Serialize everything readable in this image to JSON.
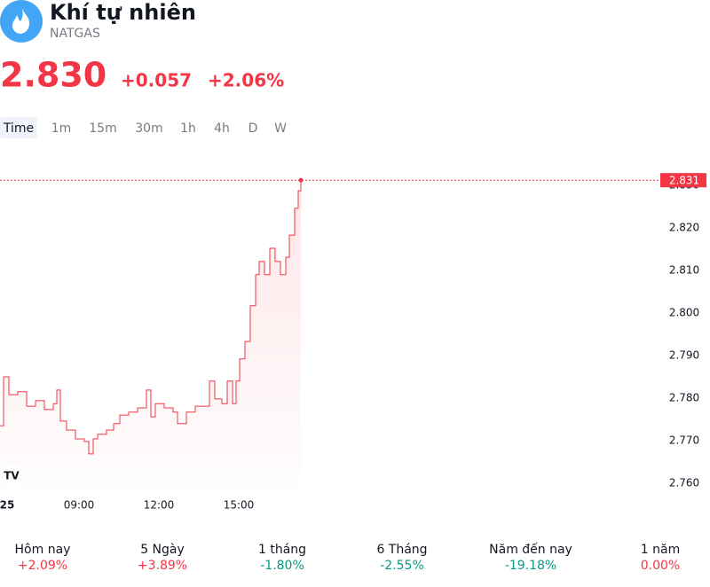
{
  "header": {
    "title": "Khí tự nhiên",
    "symbol": "NATGAS",
    "price": "2.830",
    "change": "+0.057",
    "change_percent": "+2.06%"
  },
  "timeframes": [
    "Time",
    "1m",
    "15m",
    "30m",
    "1h",
    "4h",
    "D",
    "W"
  ],
  "chart_data": {
    "type": "line",
    "series": [
      {
        "name": "NATGAS",
        "color": "#f23645",
        "x": [
          362,
          370,
          382,
          402,
          422,
          442,
          462,
          482,
          490,
          498,
          512,
          532,
          552,
          562,
          572,
          582,
          602,
          618,
          632,
          652,
          672,
          692,
          702,
          712,
          732,
          752,
          762,
          782,
          802,
          822,
          834,
          846,
          862,
          874,
          886,
          894,
          902,
          914,
          926,
          938,
          946,
          958,
          970,
          982,
          994,
          1006,
          1014,
          1026,
          1034,
          1040
        ],
        "values": [
          2.7733,
          2.7848,
          2.7806,
          2.7813,
          2.7779,
          2.7792,
          2.7771,
          2.7785,
          2.7817,
          2.7744,
          2.7723,
          2.7702,
          2.7696,
          2.7667,
          2.7702,
          2.7713,
          2.7723,
          2.7738,
          2.7758,
          2.7765,
          2.7775,
          2.7817,
          2.7754,
          2.7785,
          2.7775,
          2.7765,
          2.7738,
          2.7765,
          2.7779,
          2.7779,
          2.7838,
          2.7796,
          2.7785,
          2.7838,
          2.7785,
          2.7838,
          2.789,
          2.7931,
          2.8015,
          2.8088,
          2.8119,
          2.8088,
          2.815,
          2.8119,
          2.8088,
          2.8129,
          2.8181,
          2.8244,
          2.8285,
          2.831
        ]
      }
    ],
    "xlim": [
      362,
      1842
    ],
    "xticks": [
      {
        "value": 378,
        "label": "25"
      },
      {
        "value": 540,
        "label": "09:00"
      },
      {
        "value": 720,
        "label": "12:00"
      },
      {
        "value": 900,
        "label": "15:00"
      }
    ],
    "ylim": [
      2.758,
      2.838
    ],
    "yticks": [
      {
        "value": 2.76,
        "label": "2.760"
      },
      {
        "value": 2.77,
        "label": "2.770"
      },
      {
        "value": 2.78,
        "label": "2.780"
      },
      {
        "value": 2.79,
        "label": "2.790"
      },
      {
        "value": 2.8,
        "label": "2.800"
      },
      {
        "value": 2.81,
        "label": "2.810"
      },
      {
        "value": 2.82,
        "label": "2.820"
      },
      {
        "value": 2.83,
        "label": "2.830"
      }
    ],
    "grid": false
  },
  "performance": [
    {
      "label": "Hôm nay",
      "value": "+2.09%",
      "color": "#f23645"
    },
    {
      "label": "5 Ngày",
      "value": "+3.89%",
      "color": "#f23645"
    },
    {
      "label": "1 tháng",
      "value": "-1.80%",
      "color": "#089981"
    },
    {
      "label": "6 Tháng",
      "value": "-2.55%",
      "color": "#089981"
    },
    {
      "label": "Năm đến nay",
      "value": "-19.18%",
      "color": "#089981"
    },
    {
      "label": "1 năm",
      "value": "0.00%",
      "color": "#f23645"
    }
  ]
}
